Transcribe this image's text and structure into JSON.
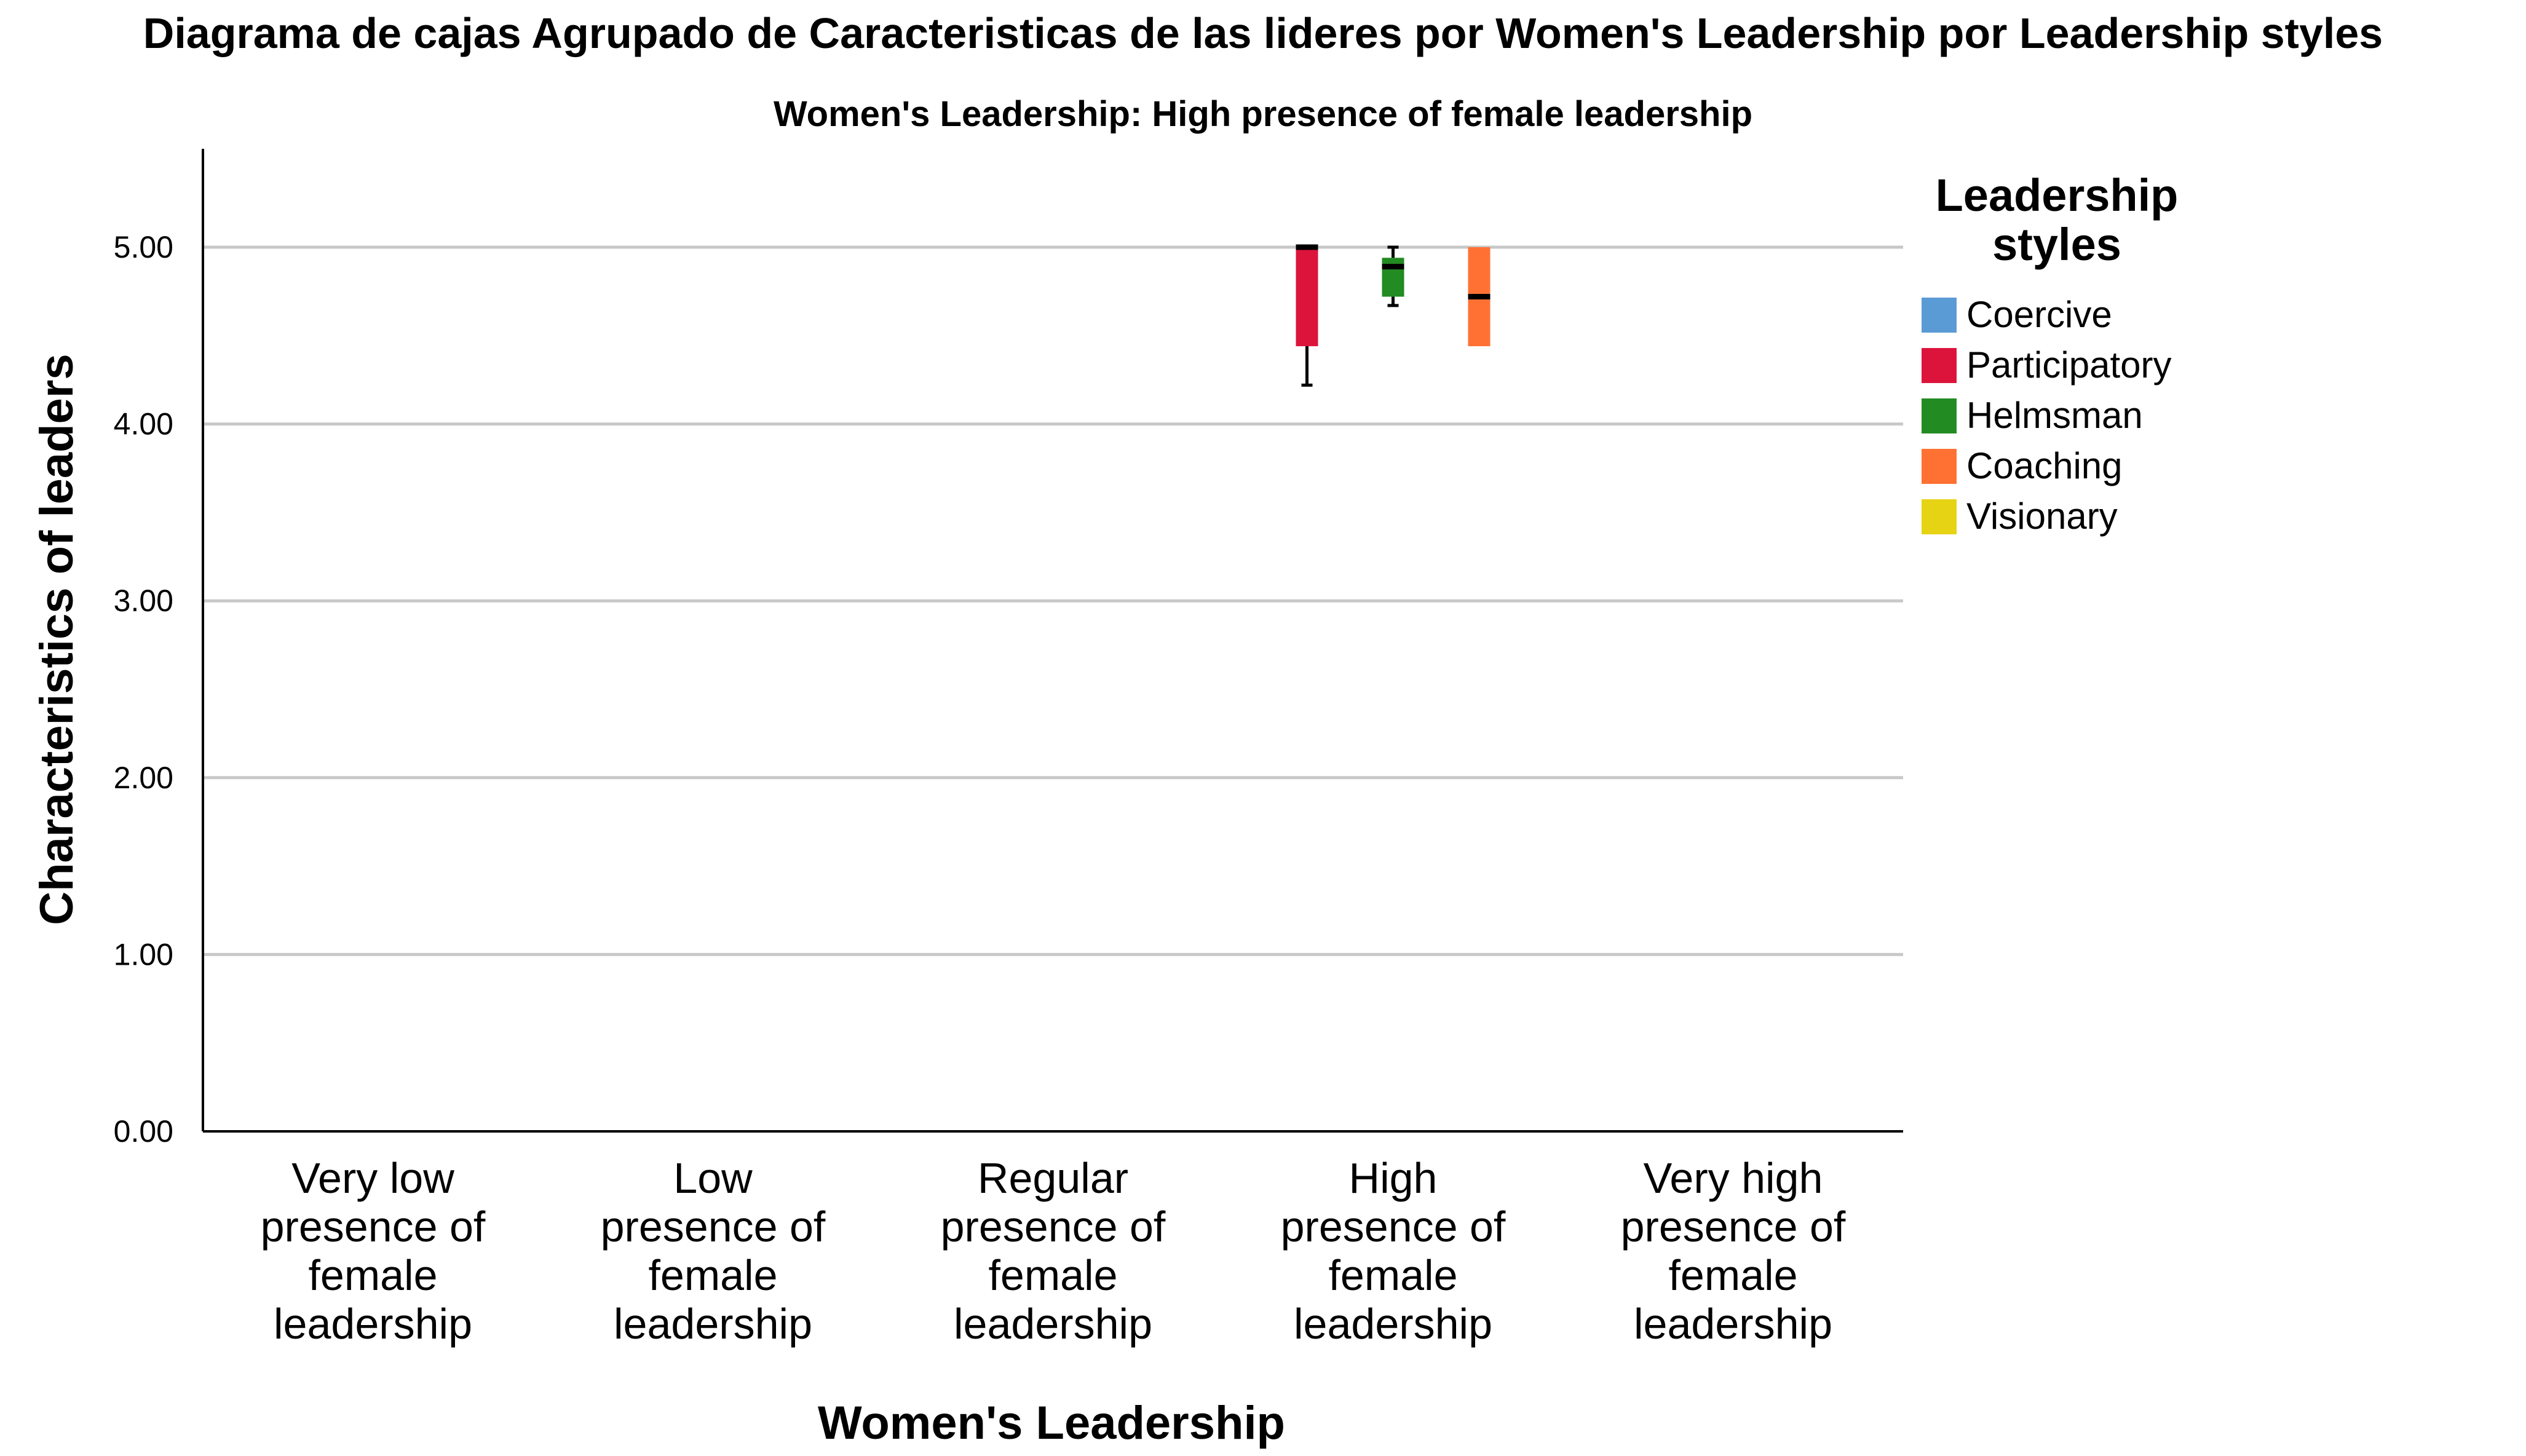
{
  "chart_data": {
    "type": "boxplot",
    "title": "Diagrama de cajas Agrupado de Caracteristicas de las lideres  por Women's Leadership por Leadership styles",
    "subtitle": "Women's Leadership: High presence of female leadership",
    "xlabel": "Women's Leadership",
    "ylabel": "Characteristics of leaders",
    "ylim": [
      0,
      5.5
    ],
    "y_ticks": [
      "0.00",
      "1.00",
      "2.00",
      "3.00",
      "4.00",
      "5.00"
    ],
    "grid": true,
    "categories": [
      [
        "Very low",
        "presence of",
        "female",
        "leadership"
      ],
      [
        "Low",
        "presence of",
        "female",
        "leadership"
      ],
      [
        "Regular",
        "presence of",
        "female",
        "leadership"
      ],
      [
        "High",
        "presence of",
        "female",
        "leadership"
      ],
      [
        "Very high",
        "presence of",
        "female",
        "leadership"
      ]
    ],
    "legend_title": [
      "Leadership",
      "styles"
    ],
    "legend_position": "right",
    "series": [
      {
        "name": "Coercive",
        "color": "#5b9bd5",
        "boxes": []
      },
      {
        "name": "Participatory",
        "color": "#dc143c",
        "boxes": [
          {
            "category": 3,
            "whisker_low": 4.22,
            "q1": 4.44,
            "median": 5.0,
            "q3": 5.0,
            "whisker_high": 5.0
          }
        ]
      },
      {
        "name": "Helmsman",
        "color": "#228b22",
        "boxes": [
          {
            "category": 3,
            "whisker_low": 4.67,
            "q1": 4.72,
            "median": 4.89,
            "q3": 4.94,
            "whisker_high": 5.0
          }
        ]
      },
      {
        "name": "Coaching",
        "color": "#ff7133",
        "boxes": [
          {
            "category": 3,
            "whisker_low": 4.44,
            "q1": 4.44,
            "median": 4.72,
            "q3": 5.0,
            "whisker_high": 5.0
          }
        ]
      },
      {
        "name": "Visionary",
        "color": "#e6d314",
        "boxes": []
      }
    ]
  }
}
